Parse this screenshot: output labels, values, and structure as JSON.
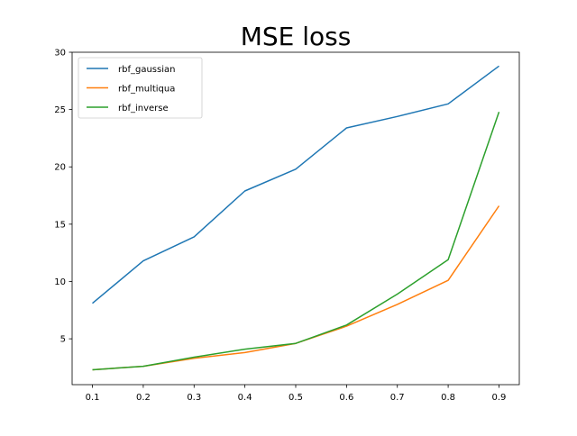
{
  "chart_data": {
    "type": "line",
    "title": "MSE loss",
    "xlabel": "",
    "ylabel": "",
    "x": [
      0.1,
      0.2,
      0.3,
      0.4,
      0.5,
      0.6,
      0.7,
      0.8,
      0.9
    ],
    "xlim": [
      0.06,
      0.94
    ],
    "ylim": [
      1.0,
      30.0
    ],
    "x_ticks": [
      "0.1",
      "0.2",
      "0.3",
      "0.4",
      "0.5",
      "0.6",
      "0.7",
      "0.8",
      "0.9"
    ],
    "y_ticks": [
      "5",
      "10",
      "15",
      "20",
      "25",
      "30"
    ],
    "y_tick_values": [
      5,
      10,
      15,
      20,
      25,
      30
    ],
    "grid": false,
    "legend_position": "top-left",
    "series": [
      {
        "name": "rbf_gaussian",
        "color": "#1f77b4",
        "values": [
          8.1,
          11.8,
          13.9,
          17.9,
          19.8,
          23.4,
          24.4,
          25.5,
          28.8
        ]
      },
      {
        "name": "rbf_multiqua",
        "color": "#ff7f0e",
        "values": [
          2.3,
          2.6,
          3.3,
          3.8,
          4.6,
          6.1,
          8.0,
          10.1,
          16.6
        ]
      },
      {
        "name": "rbf_inverse",
        "color": "#2ca02c",
        "values": [
          2.3,
          2.6,
          3.4,
          4.1,
          4.6,
          6.2,
          8.9,
          11.9,
          24.8
        ]
      }
    ]
  }
}
